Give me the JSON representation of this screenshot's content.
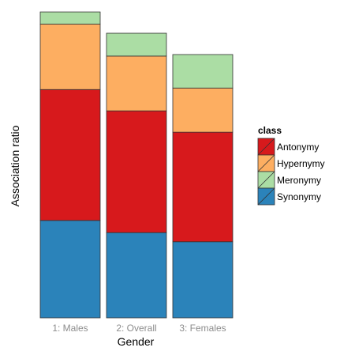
{
  "chart_data": {
    "type": "bar",
    "stacked": true,
    "title": "",
    "xlabel": "Gender",
    "ylabel": "Association ratio",
    "categories": [
      "1: Males",
      "2: Overall",
      "3: Females"
    ],
    "series": [
      {
        "name": "Synonymy",
        "color": "#2b83ba",
        "values": [
          0.32,
          0.28,
          0.25
        ]
      },
      {
        "name": "Antonymy",
        "color": "#d7191c",
        "values": [
          0.43,
          0.4,
          0.36
        ]
      },
      {
        "name": "Hypernymy",
        "color": "#fdae61",
        "values": [
          0.215,
          0.18,
          0.145
        ]
      },
      {
        "name": "Meronymy",
        "color": "#abdda4",
        "values": [
          0.04,
          0.075,
          0.11
        ]
      }
    ],
    "stack_order_bottom_to_top": [
      "Synonymy",
      "Antonymy",
      "Hypernymy",
      "Meronymy"
    ],
    "ylim": [
      0,
      1.0
    ],
    "grid": false,
    "legend": {
      "title": "class",
      "position": "right",
      "entries": [
        "Antonymy",
        "Hypernymy",
        "Meronymy",
        "Synonymy"
      ]
    }
  }
}
